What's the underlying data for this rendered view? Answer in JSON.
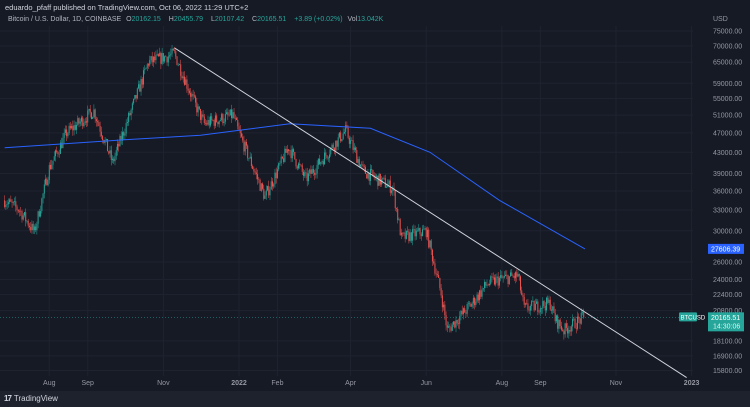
{
  "header": {
    "published": "eduardo_pfaff published on TradingView.com, Oct 06, 2022 11:29 UTC+2",
    "symbol": "Bitcoin / U.S. Dollar, 1D, COINBASE",
    "o_label": "O",
    "o": "20162.15",
    "h_label": "H",
    "h": "20455.79",
    "l_label": "L",
    "l": "20107.42",
    "c_label": "C",
    "c": "20165.51",
    "change": "+3.89 (+0.02%)",
    "vol_label": "Vol",
    "vol": "13.042K"
  },
  "footer": {
    "brand": "TradingView",
    "logo_text": "17"
  },
  "chart_data": {
    "type": "candlestick",
    "yscale": "log",
    "currency": "USD",
    "ylim": [
      15300,
      77000
    ],
    "grid": true,
    "y_ticks": [
      "75000.00",
      "70000.00",
      "65000.00",
      "59000.00",
      "55000.00",
      "51000.00",
      "47000.00",
      "43000.00",
      "39000.00",
      "36000.00",
      "33000.00",
      "30000.00",
      "26000.00",
      "24000.00",
      "22400.00",
      "20800.00",
      "18100.00",
      "16900.00",
      "15800.00"
    ],
    "x_ticks": [
      {
        "label": "Aug",
        "date": "2021-08-01",
        "bold": false
      },
      {
        "label": "Sep",
        "date": "2021-09-01",
        "bold": false
      },
      {
        "label": "Nov",
        "date": "2021-11-01",
        "bold": false
      },
      {
        "label": "2022",
        "date": "2022-01-01",
        "bold": true
      },
      {
        "label": "Feb",
        "date": "2022-02-01",
        "bold": false
      },
      {
        "label": "Apr",
        "date": "2022-04-01",
        "bold": false
      },
      {
        "label": "Jun",
        "date": "2022-06-01",
        "bold": false
      },
      {
        "label": "Aug",
        "date": "2022-08-01",
        "bold": false
      },
      {
        "label": "Sep",
        "date": "2022-09-01",
        "bold": false
      },
      {
        "label": "Nov",
        "date": "2022-11-01",
        "bold": false
      },
      {
        "label": "2023",
        "date": "2023-01-01",
        "bold": true
      }
    ],
    "price_path": [
      [
        "2021-06-26",
        34500
      ],
      [
        "2021-07-08",
        33000
      ],
      [
        "2021-07-20",
        29800
      ],
      [
        "2021-08-01",
        40000
      ],
      [
        "2021-08-15",
        47000
      ],
      [
        "2021-09-06",
        52000
      ],
      [
        "2021-09-21",
        41000
      ],
      [
        "2021-10-01",
        48000
      ],
      [
        "2021-10-20",
        65000
      ],
      [
        "2021-11-10",
        67500
      ],
      [
        "2021-11-26",
        54000
      ],
      [
        "2021-12-04",
        49000
      ],
      [
        "2021-12-27",
        51000
      ],
      [
        "2022-01-01",
        47000
      ],
      [
        "2022-01-22",
        35000
      ],
      [
        "2022-02-10",
        44000
      ],
      [
        "2022-02-24",
        38000
      ],
      [
        "2022-03-28",
        47500
      ],
      [
        "2022-04-11",
        39500
      ],
      [
        "2022-05-05",
        36500
      ],
      [
        "2022-05-12",
        29000
      ],
      [
        "2022-06-01",
        30000
      ],
      [
        "2022-06-13",
        22500
      ],
      [
        "2022-06-18",
        19000
      ],
      [
        "2022-07-08",
        21500
      ],
      [
        "2022-07-20",
        23500
      ],
      [
        "2022-07-30",
        24000
      ],
      [
        "2022-08-14",
        24400
      ],
      [
        "2022-08-19",
        21000
      ],
      [
        "2022-09-09",
        21500
      ],
      [
        "2022-09-13",
        20000
      ],
      [
        "2022-09-20",
        19000
      ],
      [
        "2022-10-06",
        20165.51
      ]
    ],
    "moving_average": [
      [
        "2021-06-26",
        43900
      ],
      [
        "2021-09-28",
        45500
      ],
      [
        "2021-12-01",
        46500
      ],
      [
        "2022-02-11",
        49000
      ],
      [
        "2022-04-17",
        48000
      ],
      [
        "2022-06-04",
        43000
      ],
      [
        "2022-07-30",
        34500
      ],
      [
        "2022-09-01",
        31000
      ],
      [
        "2022-10-07",
        27606.39
      ]
    ],
    "trendline": [
      [
        "2021-11-10",
        69400
      ],
      [
        "2022-12-28",
        15300
      ]
    ],
    "ma_last": "27606.39",
    "last_price": "20165.51",
    "last_symbol": "BTCUSD",
    "countdown": "14:30:06",
    "colors": {
      "up": "#26a69a",
      "down": "#ef5350",
      "ma": "#2962ff",
      "trendline": "#d1d4dc",
      "background": "#161a25",
      "ma_tag": "#2962ff",
      "price_tag": "#26a69a"
    }
  }
}
